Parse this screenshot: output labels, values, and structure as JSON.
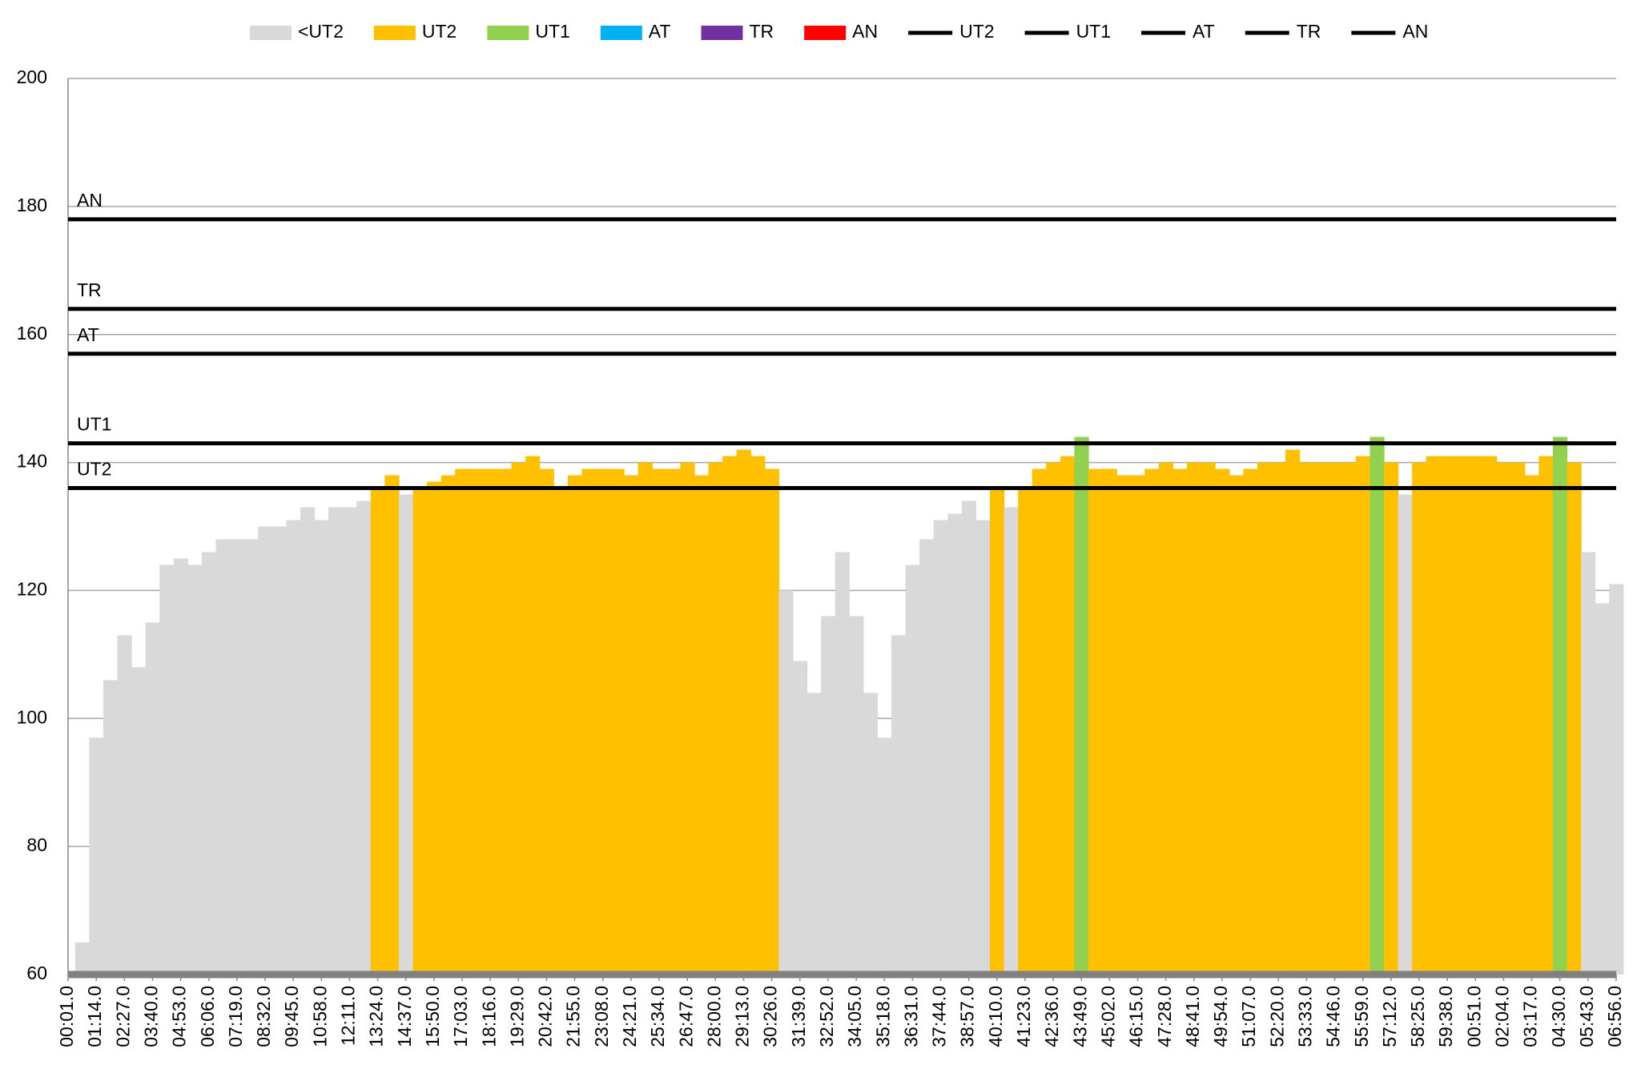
{
  "chart_data": {
    "type": "bar",
    "zones": [
      {
        "name": "<UT2",
        "color": "#d9d9d9"
      },
      {
        "name": "UT2",
        "color": "#ffc000"
      },
      {
        "name": "UT1",
        "color": "#92d050"
      },
      {
        "name": "AT",
        "color": "#00b0f0"
      },
      {
        "name": "TR",
        "color": "#7030a0"
      },
      {
        "name": "AN",
        "color": "#ff0000"
      }
    ],
    "thresholds": [
      {
        "name": "UT2",
        "value": 136,
        "color": "#000000"
      },
      {
        "name": "UT1",
        "value": 143,
        "color": "#000000"
      },
      {
        "name": "AT",
        "value": 157,
        "color": "#000000"
      },
      {
        "name": "TR",
        "value": 164,
        "color": "#000000"
      },
      {
        "name": "AN",
        "value": 178,
        "color": "#000000"
      }
    ],
    "categories": [
      "00:01.0",
      null,
      "01:14.0",
      null,
      "02:27.0",
      null,
      "03:40.0",
      null,
      "04:53.0",
      null,
      "06:06.0",
      null,
      "07:19.0",
      null,
      "08:32.0",
      null,
      "09:45.0",
      null,
      "10:58.0",
      null,
      "12:11.0",
      null,
      "13:24.0",
      null,
      "14:37.0",
      null,
      "15:50.0",
      null,
      "17:03.0",
      null,
      "18:16.0",
      null,
      "19:29.0",
      null,
      "20:42.0",
      null,
      "21:55.0",
      null,
      "23:08.0",
      null,
      "24:21.0",
      null,
      "25:34.0",
      null,
      "26:47.0",
      null,
      "28:00.0",
      null,
      "29:13.0",
      null,
      "30:26.0",
      null,
      "31:39.0",
      null,
      "32:52.0",
      null,
      "34:05.0",
      null,
      "35:18.0",
      null,
      "36:31.0",
      null,
      "37:44.0",
      null,
      "38:57.0",
      null,
      "40:10.0",
      null,
      "41:23.0",
      null,
      "42:36.0",
      null,
      "43:49.0",
      null,
      "45:02.0",
      null,
      "46:15.0",
      null,
      "47:28.0",
      null,
      "48:41.0",
      null,
      "49:54.0",
      null,
      "51:07.0",
      null,
      "52:20.0",
      null,
      "53:33.0",
      null,
      "54:46.0",
      null,
      "55:59.0",
      null,
      "57:12.0",
      null,
      "58:25.0",
      null,
      "59:38.0",
      null,
      "00:51.0",
      null,
      "02:04.0",
      null,
      "03:17.0",
      null,
      "04:30.0",
      null,
      "05:43.0",
      null,
      "06:56.0"
    ],
    "values": [
      60,
      65,
      97,
      106,
      113,
      108,
      115,
      124,
      125,
      124,
      126,
      128,
      128,
      128,
      130,
      130,
      131,
      133,
      131,
      133,
      133,
      134,
      136,
      138,
      135,
      136,
      137,
      138,
      139,
      139,
      139,
      139,
      140,
      141,
      139,
      136,
      138,
      139,
      139,
      139,
      138,
      140,
      139,
      139,
      140,
      138,
      140,
      141,
      142,
      141,
      139,
      120,
      109,
      104,
      116,
      126,
      116,
      104,
      97,
      113,
      124,
      128,
      131,
      132,
      134,
      131,
      136,
      133,
      136,
      139,
      140,
      141,
      144,
      139,
      139,
      138,
      138,
      139,
      140,
      139,
      140,
      140,
      139,
      138,
      139,
      140,
      140,
      142,
      140,
      140,
      140,
      140,
      141,
      144,
      140,
      135,
      140,
      141,
      141,
      141,
      141,
      141,
      140,
      140,
      138,
      141,
      144,
      140,
      126,
      118,
      121
    ],
    "ylim": [
      60,
      200
    ],
    "yticks": [
      60,
      80,
      100,
      120,
      140,
      160,
      180,
      200
    ],
    "grid": true
  }
}
